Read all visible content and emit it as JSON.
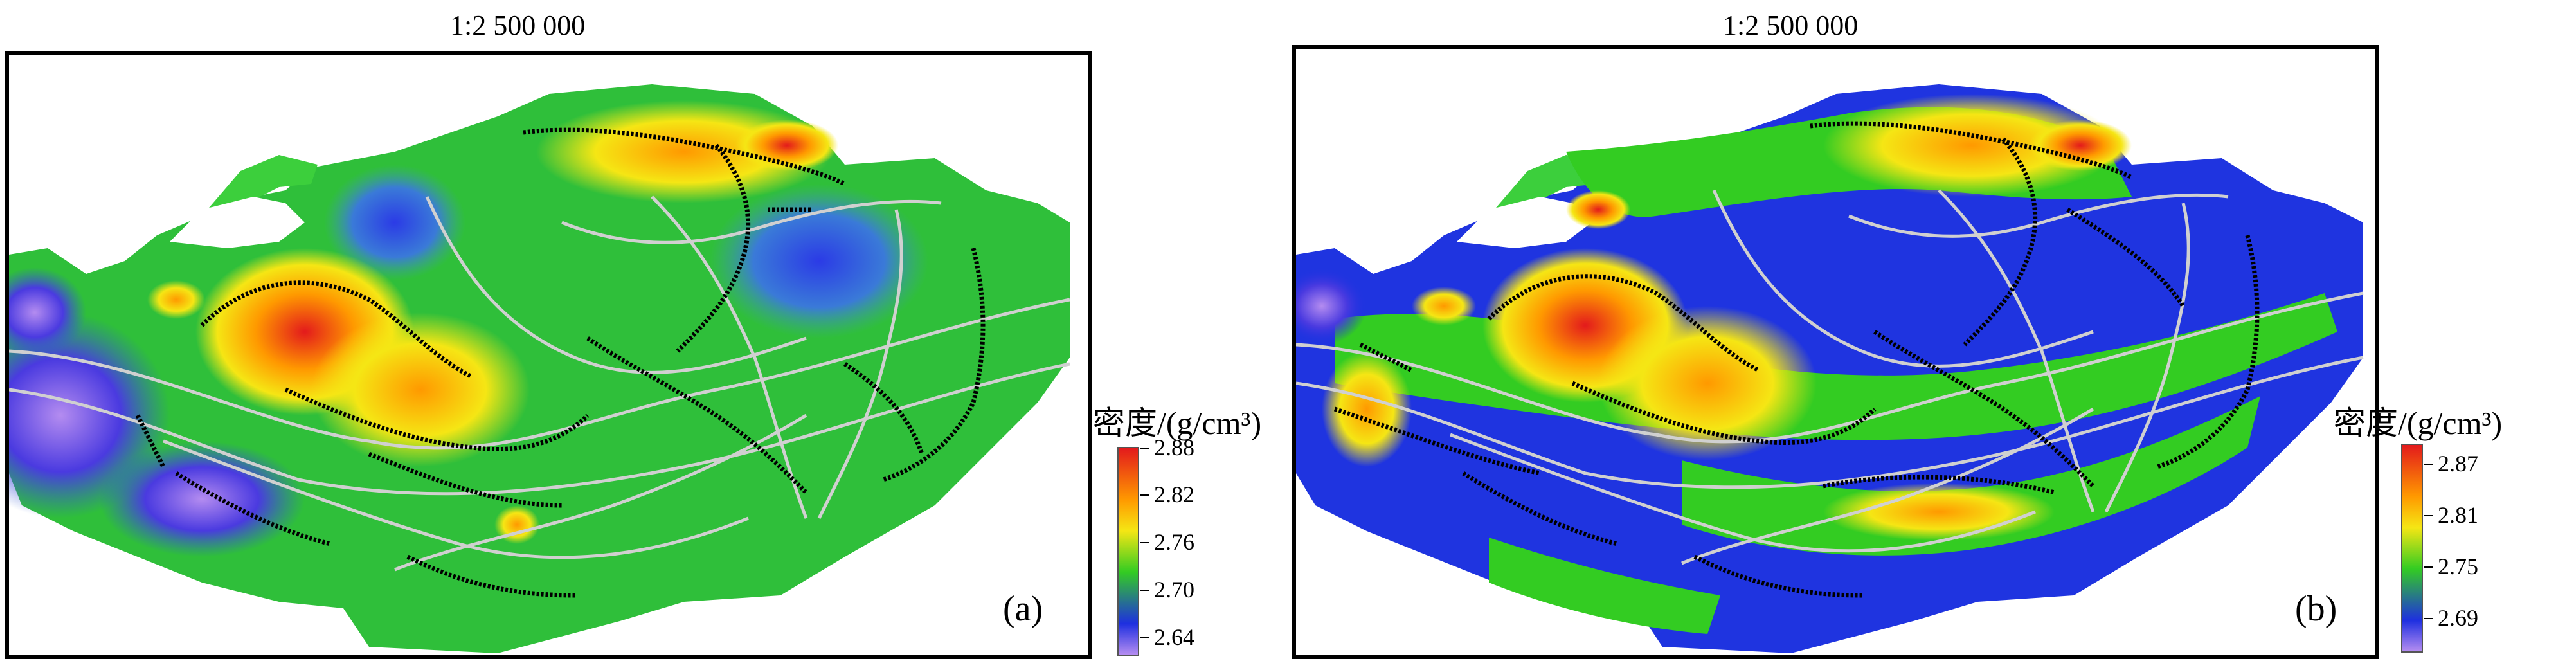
{
  "panels": [
    {
      "scale": "1:2 500 000",
      "label": "(a)",
      "colorbar": {
        "title": "密度/(g/cm³)",
        "ticks": [
          "2.88",
          "2.82",
          "2.76",
          "2.70",
          "2.64"
        ]
      }
    },
    {
      "scale": "1:2 500 000",
      "label": "(b)",
      "colorbar": {
        "title": "密度/(g/cm³)",
        "ticks": [
          "2.87",
          "2.81",
          "2.75",
          "2.69"
        ]
      }
    }
  ],
  "colors": {
    "high": "#e31a1c",
    "mid_high": "#ff9900",
    "mid": "#f5e614",
    "mid_low": "#33cc22",
    "low": "#1e2fe0",
    "lowest": "#b48cf0",
    "boundary_line": "#cfcfcf",
    "contour_line": "#000000"
  }
}
